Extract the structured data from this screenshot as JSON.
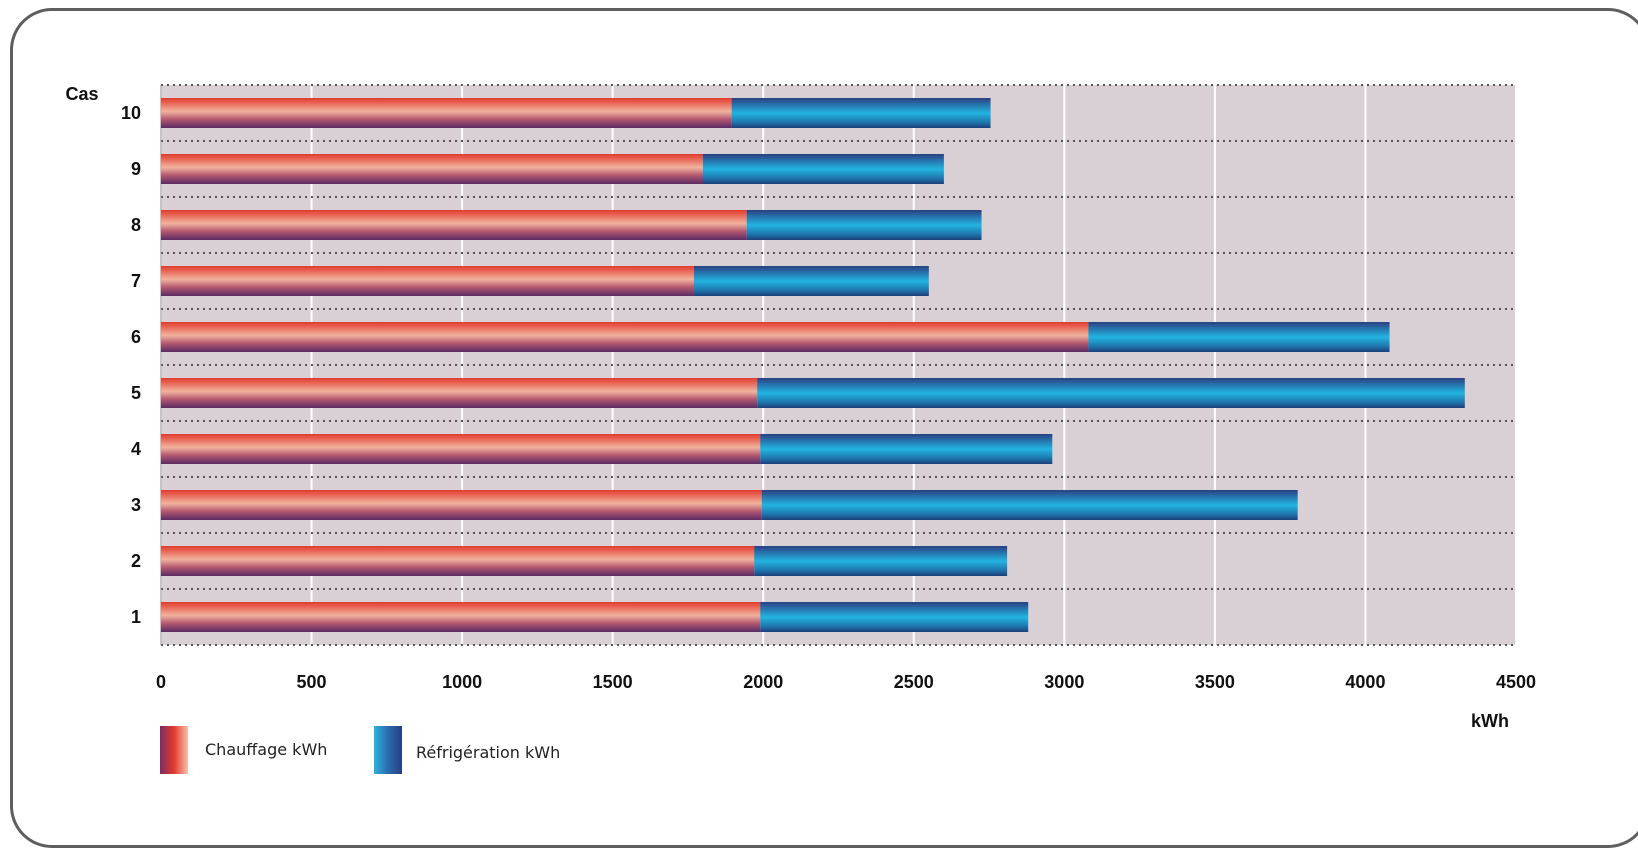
{
  "chart_data": {
    "type": "bar",
    "orientation": "horizontal",
    "stacked": true,
    "ylabel": "Cas",
    "xlabel": "kWh",
    "categories": [
      "1",
      "2",
      "3",
      "4",
      "5",
      "6",
      "7",
      "8",
      "9",
      "10"
    ],
    "series": [
      {
        "name": "Chauffage kWh",
        "values": [
          1990,
          1970,
          1995,
          1990,
          1980,
          3080,
          1770,
          1945,
          1800,
          1895
        ]
      },
      {
        "name": "Réfrigération kWh",
        "values": [
          890,
          840,
          1780,
          970,
          2350,
          1000,
          780,
          780,
          800,
          860
        ]
      }
    ],
    "xlim": [
      0,
      4500
    ],
    "xticks": [
      "0",
      "500",
      "1000",
      "1500",
      "2000",
      "2500",
      "3000",
      "3500",
      "4000",
      "4500"
    ],
    "grid": true,
    "legend_position": "bottom-left",
    "colors": {
      "heating_top": "#e23a2c",
      "heating_mid": "#f2b39f",
      "heating_bottom": "#5a2b63",
      "cooling_top": "#2b3e83",
      "cooling_mid": "#22b5e0",
      "cooling_bottom": "#1d3f7a",
      "plot_bg": "#d9d0d6",
      "frame": "#5e5e5e"
    }
  }
}
